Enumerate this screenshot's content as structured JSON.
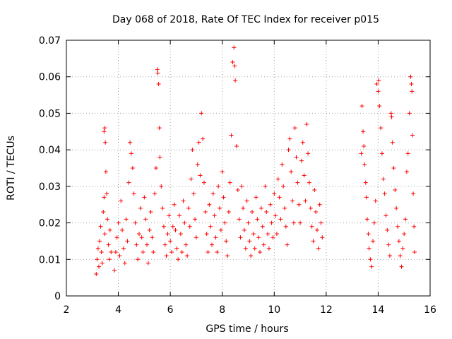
{
  "chart_data": {
    "type": "scatter",
    "title": "Day 068 of 2018, Rate Of TEC Index for receiver p015",
    "xlabel": "GPS time / hours",
    "ylabel": "ROTI / TECUs",
    "xlim": [
      2,
      16
    ],
    "ylim": [
      0,
      0.07
    ],
    "grid": true,
    "marker": "+",
    "color": "#ff0000",
    "x_ticks": [
      {
        "value": 2,
        "label": "2"
      },
      {
        "value": 4,
        "label": "4"
      },
      {
        "value": 6,
        "label": "6"
      },
      {
        "value": 8,
        "label": "8"
      },
      {
        "value": 10,
        "label": "10"
      },
      {
        "value": 12,
        "label": "12"
      },
      {
        "value": 14,
        "label": "14"
      },
      {
        "value": 16,
        "label": "16"
      }
    ],
    "y_ticks": [
      {
        "value": 0,
        "label": "0"
      },
      {
        "value": 0.01,
        "label": "0.01"
      },
      {
        "value": 0.02,
        "label": "0.02"
      },
      {
        "value": 0.03,
        "label": "0.03"
      },
      {
        "value": 0.04,
        "label": "0.04"
      },
      {
        "value": 0.05,
        "label": "0.05"
      },
      {
        "value": 0.06,
        "label": "0.06"
      },
      {
        "value": 0.07,
        "label": "0.07"
      }
    ],
    "series": [
      {
        "name": "ROTI",
        "points": [
          [
            3.15,
            0.006
          ],
          [
            3.18,
            0.01
          ],
          [
            3.22,
            0.013
          ],
          [
            3.25,
            0.008
          ],
          [
            3.28,
            0.015
          ],
          [
            3.32,
            0.019
          ],
          [
            3.35,
            0.012
          ],
          [
            3.38,
            0.009
          ],
          [
            3.42,
            0.023
          ],
          [
            3.45,
            0.027
          ],
          [
            3.48,
            0.017
          ],
          [
            3.52,
            0.034
          ],
          [
            3.55,
            0.028
          ],
          [
            3.58,
            0.021
          ],
          [
            3.62,
            0.014
          ],
          [
            3.65,
            0.01
          ],
          [
            3.68,
            0.018
          ],
          [
            3.72,
            0.012
          ],
          [
            3.45,
            0.045
          ],
          [
            3.48,
            0.046
          ],
          [
            3.5,
            0.042
          ],
          [
            3.85,
            0.007
          ],
          [
            3.9,
            0.012
          ],
          [
            3.95,
            0.016
          ],
          [
            4.0,
            0.02
          ],
          [
            4.05,
            0.011
          ],
          [
            4.1,
            0.026
          ],
          [
            4.15,
            0.018
          ],
          [
            4.2,
            0.013
          ],
          [
            4.25,
            0.009
          ],
          [
            4.3,
            0.021
          ],
          [
            4.35,
            0.015
          ],
          [
            4.4,
            0.031
          ],
          [
            4.45,
            0.042
          ],
          [
            4.5,
            0.039
          ],
          [
            4.55,
            0.035
          ],
          [
            4.6,
            0.028
          ],
          [
            4.65,
            0.02
          ],
          [
            4.7,
            0.014
          ],
          [
            4.75,
            0.01
          ],
          [
            4.8,
            0.017
          ],
          [
            4.85,
            0.024
          ],
          [
            4.9,
            0.016
          ],
          [
            4.95,
            0.012
          ],
          [
            5.0,
            0.027
          ],
          [
            5.05,
            0.021
          ],
          [
            5.1,
            0.014
          ],
          [
            5.15,
            0.009
          ],
          [
            5.2,
            0.018
          ],
          [
            5.25,
            0.023
          ],
          [
            5.3,
            0.016
          ],
          [
            5.35,
            0.012
          ],
          [
            5.4,
            0.028
          ],
          [
            5.45,
            0.035
          ],
          [
            5.5,
            0.062
          ],
          [
            5.52,
            0.061
          ],
          [
            5.55,
            0.058
          ],
          [
            5.58,
            0.046
          ],
          [
            5.6,
            0.038
          ],
          [
            5.65,
            0.03
          ],
          [
            5.7,
            0.024
          ],
          [
            5.75,
            0.019
          ],
          [
            5.8,
            0.014
          ],
          [
            5.85,
            0.011
          ],
          [
            5.9,
            0.017
          ],
          [
            5.95,
            0.022
          ],
          [
            6.0,
            0.015
          ],
          [
            6.05,
            0.012
          ],
          [
            6.1,
            0.019
          ],
          [
            6.15,
            0.025
          ],
          [
            6.2,
            0.018
          ],
          [
            6.25,
            0.013
          ],
          [
            6.3,
            0.01
          ],
          [
            6.35,
            0.022
          ],
          [
            6.4,
            0.017
          ],
          [
            6.45,
            0.012
          ],
          [
            6.5,
            0.026
          ],
          [
            6.55,
            0.02
          ],
          [
            6.6,
            0.014
          ],
          [
            6.65,
            0.011
          ],
          [
            6.7,
            0.024
          ],
          [
            6.75,
            0.019
          ],
          [
            6.8,
            0.032
          ],
          [
            6.85,
            0.04
          ],
          [
            6.9,
            0.028
          ],
          [
            6.95,
            0.021
          ],
          [
            7.0,
            0.016
          ],
          [
            7.05,
            0.036
          ],
          [
            7.1,
            0.042
          ],
          [
            7.15,
            0.033
          ],
          [
            7.2,
            0.05
          ],
          [
            7.25,
            0.043
          ],
          [
            7.3,
            0.031
          ],
          [
            7.35,
            0.023
          ],
          [
            7.4,
            0.017
          ],
          [
            7.45,
            0.012
          ],
          [
            7.5,
            0.025
          ],
          [
            7.55,
            0.019
          ],
          [
            7.6,
            0.014
          ],
          [
            7.65,
            0.028
          ],
          [
            7.7,
            0.022
          ],
          [
            7.75,
            0.016
          ],
          [
            7.8,
            0.012
          ],
          [
            7.85,
            0.03
          ],
          [
            7.9,
            0.024
          ],
          [
            7.95,
            0.018
          ],
          [
            8.0,
            0.034
          ],
          [
            8.05,
            0.027
          ],
          [
            8.1,
            0.02
          ],
          [
            8.15,
            0.015
          ],
          [
            8.2,
            0.011
          ],
          [
            8.25,
            0.023
          ],
          [
            8.3,
            0.031
          ],
          [
            8.35,
            0.044
          ],
          [
            8.4,
            0.064
          ],
          [
            8.45,
            0.068
          ],
          [
            8.48,
            0.063
          ],
          [
            8.5,
            0.059
          ],
          [
            8.55,
            0.041
          ],
          [
            8.6,
            0.029
          ],
          [
            8.65,
            0.021
          ],
          [
            8.7,
            0.016
          ],
          [
            8.75,
            0.03
          ],
          [
            8.8,
            0.024
          ],
          [
            8.85,
            0.018
          ],
          [
            8.9,
            0.013
          ],
          [
            8.95,
            0.026
          ],
          [
            9.0,
            0.02
          ],
          [
            9.05,
            0.015
          ],
          [
            9.1,
            0.011
          ],
          [
            9.15,
            0.023
          ],
          [
            9.2,
            0.017
          ],
          [
            9.25,
            0.013
          ],
          [
            9.3,
            0.027
          ],
          [
            9.35,
            0.021
          ],
          [
            9.4,
            0.016
          ],
          [
            9.45,
            0.012
          ],
          [
            9.5,
            0.024
          ],
          [
            9.55,
            0.019
          ],
          [
            9.6,
            0.014
          ],
          [
            9.65,
            0.03
          ],
          [
            9.7,
            0.023
          ],
          [
            9.75,
            0.017
          ],
          [
            9.8,
            0.013
          ],
          [
            9.85,
            0.025
          ],
          [
            9.9,
            0.02
          ],
          [
            9.95,
            0.016
          ],
          [
            10.0,
            0.028
          ],
          [
            10.05,
            0.022
          ],
          [
            10.1,
            0.017
          ],
          [
            10.15,
            0.032
          ],
          [
            10.2,
            0.027
          ],
          [
            10.25,
            0.021
          ],
          [
            10.3,
            0.036
          ],
          [
            10.35,
            0.03
          ],
          [
            10.4,
            0.024
          ],
          [
            10.45,
            0.019
          ],
          [
            10.5,
            0.014
          ],
          [
            10.55,
            0.04
          ],
          [
            10.6,
            0.043
          ],
          [
            10.65,
            0.034
          ],
          [
            10.7,
            0.026
          ],
          [
            10.75,
            0.02
          ],
          [
            10.8,
            0.046
          ],
          [
            10.85,
            0.038
          ],
          [
            10.9,
            0.031
          ],
          [
            10.95,
            0.025
          ],
          [
            11.0,
            0.02
          ],
          [
            11.05,
            0.037
          ],
          [
            11.1,
            0.042
          ],
          [
            11.15,
            0.033
          ],
          [
            11.2,
            0.026
          ],
          [
            11.25,
            0.047
          ],
          [
            11.3,
            0.039
          ],
          [
            11.35,
            0.031
          ],
          [
            11.4,
            0.024
          ],
          [
            11.45,
            0.019
          ],
          [
            11.5,
            0.015
          ],
          [
            11.55,
            0.029
          ],
          [
            11.6,
            0.023
          ],
          [
            11.65,
            0.018
          ],
          [
            11.7,
            0.013
          ],
          [
            11.75,
            0.025
          ],
          [
            11.8,
            0.02
          ],
          [
            11.85,
            0.016
          ],
          [
            13.35,
            0.039
          ],
          [
            13.38,
            0.052
          ],
          [
            13.42,
            0.045
          ],
          [
            13.45,
            0.041
          ],
          [
            13.48,
            0.036
          ],
          [
            13.52,
            0.031
          ],
          [
            13.55,
            0.027
          ],
          [
            13.58,
            0.021
          ],
          [
            13.62,
            0.017
          ],
          [
            13.65,
            0.013
          ],
          [
            13.7,
            0.01
          ],
          [
            13.75,
            0.008
          ],
          [
            13.8,
            0.015
          ],
          [
            13.85,
            0.02
          ],
          [
            13.9,
            0.026
          ],
          [
            13.95,
            0.058
          ],
          [
            14.0,
            0.056
          ],
          [
            14.02,
            0.059
          ],
          [
            14.05,
            0.052
          ],
          [
            14.1,
            0.046
          ],
          [
            14.15,
            0.039
          ],
          [
            14.2,
            0.032
          ],
          [
            14.25,
            0.028
          ],
          [
            14.3,
            0.022
          ],
          [
            14.35,
            0.018
          ],
          [
            14.4,
            0.014
          ],
          [
            14.45,
            0.011
          ],
          [
            14.5,
            0.05
          ],
          [
            14.52,
            0.049
          ],
          [
            14.55,
            0.042
          ],
          [
            14.6,
            0.035
          ],
          [
            14.65,
            0.029
          ],
          [
            14.7,
            0.024
          ],
          [
            14.75,
            0.019
          ],
          [
            14.8,
            0.015
          ],
          [
            14.85,
            0.011
          ],
          [
            14.9,
            0.008
          ],
          [
            14.95,
            0.013
          ],
          [
            15.0,
            0.017
          ],
          [
            15.05,
            0.021
          ],
          [
            15.1,
            0.034
          ],
          [
            15.15,
            0.039
          ],
          [
            15.2,
            0.05
          ],
          [
            15.25,
            0.06
          ],
          [
            15.28,
            0.058
          ],
          [
            15.3,
            0.056
          ],
          [
            15.32,
            0.044
          ],
          [
            15.35,
            0.028
          ],
          [
            15.38,
            0.019
          ],
          [
            15.4,
            0.012
          ]
        ]
      }
    ]
  }
}
